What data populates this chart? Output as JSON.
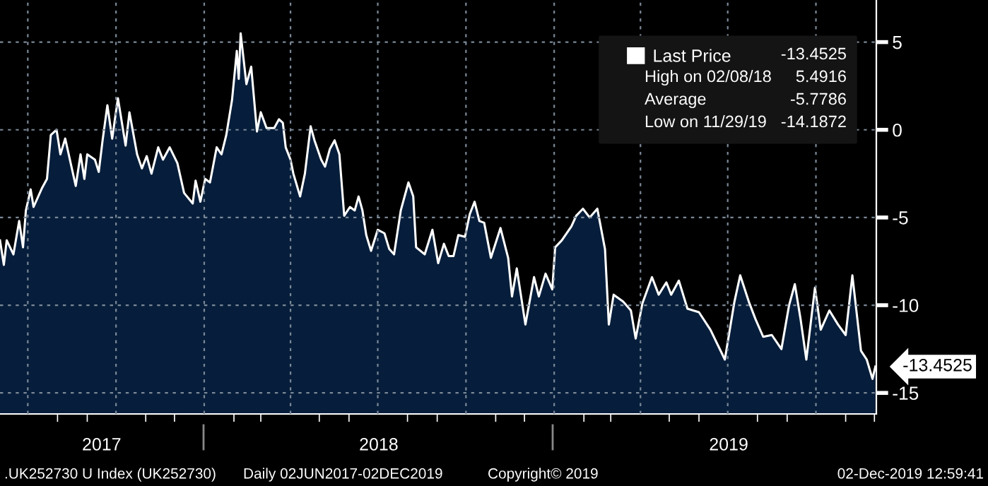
{
  "chart_data": {
    "type": "area",
    "x": [
      "2017-06-02",
      "2017-06-06",
      "2017-06-09",
      "2017-06-16",
      "2017-06-22",
      "2017-06-26",
      "2017-06-29",
      "2017-07-04",
      "2017-07-07",
      "2017-07-16",
      "2017-07-21",
      "2017-07-25",
      "2017-07-31",
      "2017-08-04",
      "2017-08-09",
      "2017-08-20",
      "2017-08-25",
      "2017-08-29",
      "2017-09-01",
      "2017-09-09",
      "2017-09-13",
      "2017-09-17",
      "2017-09-22",
      "2017-09-27",
      "2017-10-03",
      "2017-10-11",
      "2017-10-15",
      "2017-10-23",
      "2017-10-28",
      "2017-11-02",
      "2017-11-07",
      "2017-11-14",
      "2017-11-19",
      "2017-11-26",
      "2017-12-04",
      "2017-12-11",
      "2017-12-20",
      "2017-12-23",
      "2017-12-28",
      "2018-01-02",
      "2018-01-07",
      "2018-01-14",
      "2018-01-19",
      "2018-01-24",
      "2018-01-30",
      "2018-02-04",
      "2018-02-06",
      "2018-02-08",
      "2018-02-14",
      "2018-02-19",
      "2018-02-25",
      "2018-03-01",
      "2018-03-07",
      "2018-03-15",
      "2018-03-20",
      "2018-03-24",
      "2018-03-27",
      "2018-04-01",
      "2018-04-04",
      "2018-04-11",
      "2018-04-16",
      "2018-04-22",
      "2018-04-26",
      "2018-05-03",
      "2018-05-07",
      "2018-05-12",
      "2018-05-17",
      "2018-05-22",
      "2018-05-27",
      "2018-06-02",
      "2018-06-07",
      "2018-06-11",
      "2018-06-15",
      "2018-06-19",
      "2018-06-24",
      "2018-07-01",
      "2018-07-08",
      "2018-07-13",
      "2018-07-18",
      "2018-07-25",
      "2018-08-02",
      "2018-08-07",
      "2018-08-10",
      "2018-08-19",
      "2018-08-27",
      "2018-09-02",
      "2018-09-08",
      "2018-09-13",
      "2018-09-18",
      "2018-09-23",
      "2018-09-30",
      "2018-10-05",
      "2018-10-10",
      "2018-10-15",
      "2018-10-20",
      "2018-10-27",
      "2018-11-06",
      "2018-11-14",
      "2018-11-18",
      "2018-11-23",
      "2018-12-02",
      "2018-12-11",
      "2018-12-16",
      "2018-12-23",
      "2018-12-30",
      "2019-01-02",
      "2019-01-09",
      "2019-01-19",
      "2019-01-24",
      "2019-01-31",
      "2019-02-07",
      "2019-02-15",
      "2019-02-23",
      "2019-02-27",
      "2019-03-04",
      "2019-03-14",
      "2019-03-22",
      "2019-03-27",
      "2019-04-03",
      "2019-04-13",
      "2019-04-20",
      "2019-04-28",
      "2019-05-03",
      "2019-05-11",
      "2019-05-20",
      "2019-06-01",
      "2019-06-13",
      "2019-06-28",
      "2019-07-08",
      "2019-07-14",
      "2019-07-23",
      "2019-07-30",
      "2019-08-07",
      "2019-08-16",
      "2019-08-26",
      "2019-09-03",
      "2019-09-09",
      "2019-09-15",
      "2019-09-21",
      "2019-09-30",
      "2019-10-06",
      "2019-10-15",
      "2019-10-24",
      "2019-11-01",
      "2019-11-08",
      "2019-11-17",
      "2019-11-23",
      "2019-11-29",
      "2019-12-02"
    ],
    "series": [
      {
        "name": "Last Price",
        "color": "#ffffff",
        "values": [
          -6.3,
          -7.7,
          -6.3,
          -7.1,
          -5.2,
          -6.7,
          -4.6,
          -3.4,
          -4.4,
          -3.3,
          -2.8,
          -0.3,
          0.0,
          -1.4,
          -0.5,
          -3.2,
          -1.4,
          -2.8,
          -1.4,
          -1.7,
          -2.4,
          -0.6,
          1.4,
          -0.5,
          1.8,
          -0.9,
          1.0,
          -1.4,
          -2.2,
          -1.5,
          -2.5,
          -1.0,
          -1.7,
          -1.0,
          -1.9,
          -3.6,
          -4.2,
          -2.9,
          -4.1,
          -2.8,
          -3.0,
          -1.0,
          -1.4,
          -0.3,
          1.7,
          4.5,
          2.9,
          5.5,
          2.6,
          3.6,
          -0.1,
          1.0,
          0.1,
          0.1,
          0.6,
          0.4,
          -1.0,
          -1.7,
          -2.5,
          -3.8,
          -2.5,
          0.2,
          -0.6,
          -1.7,
          -2.1,
          -1.1,
          -0.6,
          -1.4,
          -4.9,
          -4.4,
          -4.6,
          -3.8,
          -4.6,
          -6.0,
          -6.9,
          -5.7,
          -5.9,
          -6.8,
          -7.1,
          -4.6,
          -3.0,
          -3.8,
          -6.7,
          -7.1,
          -5.7,
          -7.6,
          -6.5,
          -7.2,
          -7.2,
          -6.0,
          -6.1,
          -4.8,
          -4.1,
          -5.2,
          -5.3,
          -7.3,
          -5.6,
          -7.3,
          -9.5,
          -7.9,
          -11.1,
          -8.4,
          -9.5,
          -8.2,
          -9.1,
          -6.7,
          -6.3,
          -5.5,
          -4.9,
          -4.5,
          -5.0,
          -4.5,
          -6.8,
          -11.1,
          -9.4,
          -9.8,
          -10.3,
          -11.9,
          -9.9,
          -8.4,
          -9.4,
          -8.7,
          -9.4,
          -8.6,
          -10.2,
          -10.4,
          -11.4,
          -13.1,
          -9.8,
          -8.3,
          -9.8,
          -10.8,
          -11.8,
          -11.7,
          -12.5,
          -10.0,
          -8.8,
          -10.8,
          -13.1,
          -9.0,
          -11.4,
          -10.3,
          -11.1,
          -11.7,
          -8.3,
          -12.6,
          -13.1,
          -14.2,
          -13.5
        ]
      }
    ],
    "xlim": [
      "2017-06-02",
      "2019-12-03"
    ],
    "xticks": [
      {
        "value": "2017-07-01",
        "label": null
      },
      {
        "value": "2017-09-16",
        "label": "2017"
      },
      {
        "value": "2017-10-01",
        "label": null
      },
      {
        "value": "2018-01-01",
        "label": null
      },
      {
        "value": "2018-04-01",
        "label": null
      },
      {
        "value": "2018-07-01",
        "label": null
      },
      {
        "value": "2018-07-02",
        "label": "2018"
      },
      {
        "value": "2018-10-01",
        "label": null
      },
      {
        "value": "2019-01-01",
        "label": null
      },
      {
        "value": "2019-04-01",
        "label": null
      },
      {
        "value": "2019-07-01",
        "label": null
      },
      {
        "value": "2019-07-02",
        "label": "2019"
      },
      {
        "value": "2019-10-01",
        "label": null
      }
    ],
    "ylim": [
      -16.2,
      7.4
    ],
    "yticks": [
      5,
      0,
      -5,
      -10,
      -15
    ],
    "grid": true,
    "legend": "top right",
    "annotations": [
      "-13.4525",
      "High on 02/08/18",
      "5.4916",
      "Average",
      "-5.7786",
      "Low on 11/29/19",
      "-14.1872",
      {
        "text": "-13.4525",
        "x": "2019-12-02",
        "y": -13.5
      },
      ".UK252730 U Index (UK252730)",
      "Daily 02JUN2017-02DEC2019",
      "Copyright© 2019",
      "02-Dec-2019 12:59:41"
    ]
  }
}
